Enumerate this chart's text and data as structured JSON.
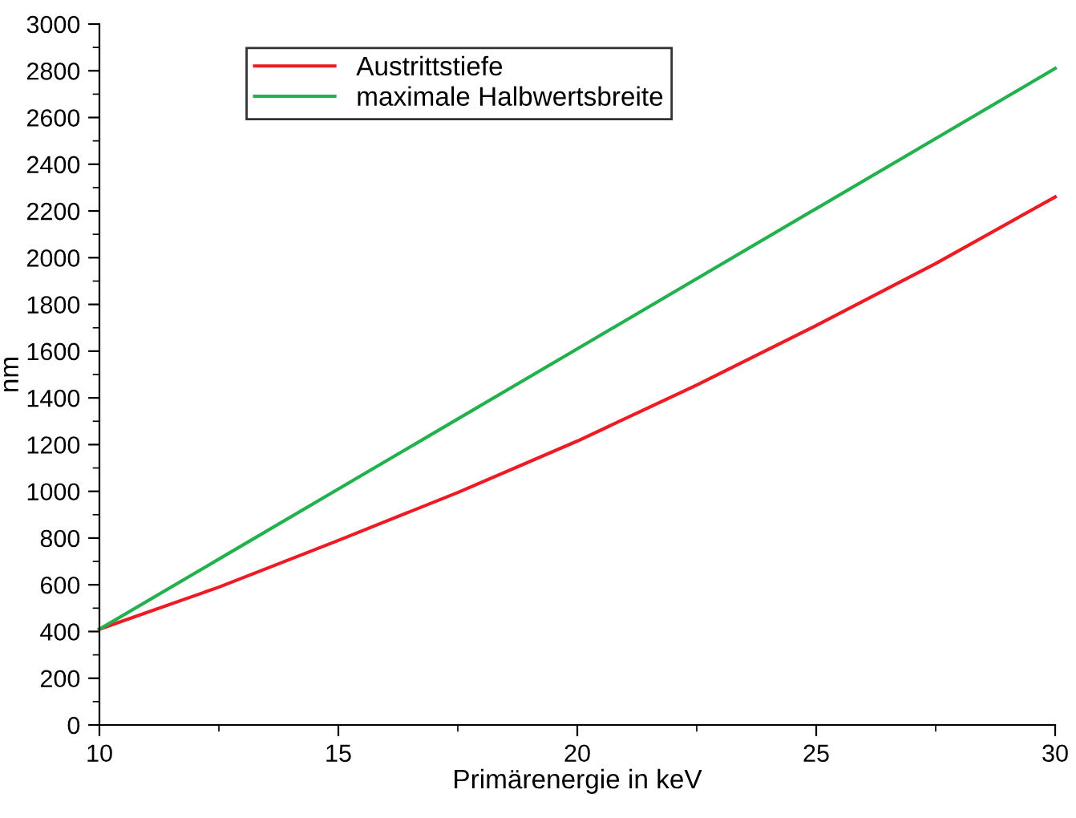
{
  "chart_data": {
    "type": "line",
    "xlabel": "Primärenergie in keV",
    "ylabel": "nm",
    "x": [
      10,
      12.5,
      15,
      17.5,
      20,
      22.5,
      25,
      27.5,
      30
    ],
    "series": [
      {
        "name": "Austrittstiefe",
        "color": "#ed1c24",
        "values": [
          410,
          590,
          790,
          995,
          1215,
          1455,
          1710,
          1975,
          2260
        ]
      },
      {
        "name": "maximale Halbwertsbreite",
        "color": "#22b14c",
        "values": [
          410,
          710,
          1010,
          1310,
          1610,
          1910,
          2210,
          2510,
          2810
        ]
      }
    ],
    "xlim": [
      10,
      30
    ],
    "xticks": [
      10,
      15,
      20,
      25,
      30
    ],
    "ylim": [
      0,
      3000
    ],
    "yticks": [
      0,
      200,
      400,
      600,
      800,
      1000,
      1200,
      1400,
      1600,
      1800,
      2000,
      2200,
      2400,
      2600,
      2800,
      3000
    ],
    "grid": false,
    "legend": "top left",
    "marker": "none",
    "line_style": "solid"
  }
}
